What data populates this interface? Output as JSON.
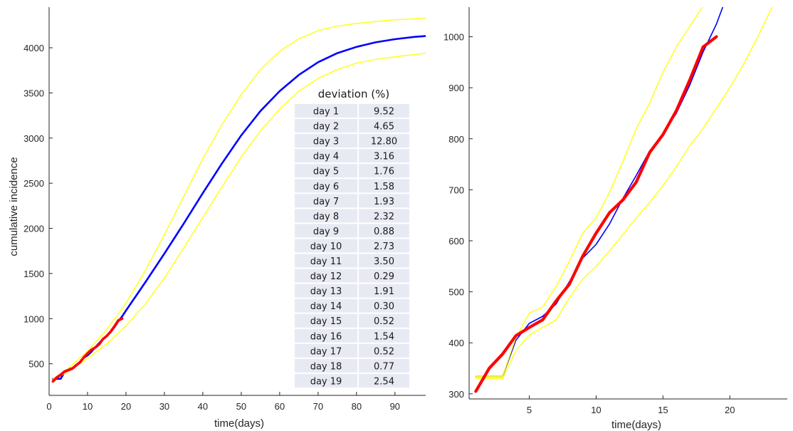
{
  "chart_data": [
    {
      "type": "line",
      "xlabel": "time(days)",
      "ylabel": "cumulative incidence",
      "xlim": [
        0,
        98
      ],
      "ylim": [
        150,
        4450
      ],
      "xticks": [
        0,
        10,
        20,
        30,
        40,
        50,
        60,
        70,
        80,
        90
      ],
      "yticks": [
        500,
        1000,
        1500,
        2000,
        2500,
        3000,
        3500,
        4000
      ],
      "series": [
        {
          "color": "#0000ff",
          "role": "model",
          "x": [
            1,
            2,
            3,
            4,
            5,
            6,
            7,
            8,
            9,
            10,
            11,
            12,
            13,
            14,
            15,
            16,
            17,
            18,
            19,
            20,
            25,
            30,
            35,
            40,
            45,
            50,
            55,
            60,
            65,
            70,
            75,
            80,
            85,
            90,
            95,
            98
          ],
          "y": [
            334,
            334,
            334,
            405,
            438,
            452,
            476,
            520,
            566,
            593,
            633,
            683,
            728,
            776,
            810,
            850,
            905,
            970,
            1025,
            1090,
            1400,
            1720,
            2050,
            2390,
            2720,
            3030,
            3300,
            3520,
            3700,
            3840,
            3940,
            4010,
            4060,
            4095,
            4120,
            4130
          ]
        },
        {
          "color": "#ffff00",
          "role": "upper bound",
          "x": [
            1,
            5,
            10,
            15,
            20,
            25,
            30,
            35,
            40,
            45,
            50,
            55,
            60,
            65,
            70,
            75,
            80,
            85,
            90,
            95,
            98
          ],
          "y": [
            334,
            450,
            640,
            880,
            1170,
            1530,
            1930,
            2350,
            2770,
            3150,
            3480,
            3760,
            3960,
            4100,
            4190,
            4240,
            4270,
            4290,
            4310,
            4320,
            4330
          ]
        },
        {
          "color": "#ffff00",
          "role": "lower bound",
          "x": [
            1,
            5,
            10,
            15,
            20,
            25,
            30,
            35,
            40,
            45,
            50,
            55,
            60,
            65,
            70,
            75,
            80,
            85,
            90,
            95,
            98
          ],
          "y": [
            320,
            415,
            560,
            720,
            920,
            1160,
            1450,
            1780,
            2120,
            2460,
            2790,
            3080,
            3320,
            3520,
            3660,
            3760,
            3830,
            3870,
            3900,
            3925,
            3940
          ]
        },
        {
          "color": "#ff0000",
          "role": "observed",
          "x": [
            1,
            2,
            3,
            4,
            5,
            6,
            7,
            8,
            9,
            10,
            11,
            12,
            13,
            14,
            15,
            16,
            17,
            18,
            19
          ],
          "y": [
            305,
            350,
            378,
            414,
            430,
            445,
            482,
            515,
            570,
            615,
            655,
            680,
            715,
            773,
            808,
            855,
            915,
            980,
            1000
          ]
        }
      ],
      "table": {
        "title": "deviation (%)",
        "rows": [
          [
            "day 1",
            "9.52"
          ],
          [
            "day 2",
            "4.65"
          ],
          [
            "day 3",
            "12.80"
          ],
          [
            "day 4",
            "3.16"
          ],
          [
            "day 5",
            "1.76"
          ],
          [
            "day 6",
            "1.58"
          ],
          [
            "day 7",
            "1.93"
          ],
          [
            "day 8",
            "2.32"
          ],
          [
            "day 9",
            "0.88"
          ],
          [
            "day 10",
            "2.73"
          ],
          [
            "day 11",
            "3.50"
          ],
          [
            "day 12",
            "0.29"
          ],
          [
            "day 13",
            "1.91"
          ],
          [
            "day 14",
            "0.30"
          ],
          [
            "day 15",
            "0.52"
          ],
          [
            "day 16",
            "1.54"
          ],
          [
            "day 17",
            "0.52"
          ],
          [
            "day 18",
            "0.77"
          ],
          [
            "day 19",
            "2.54"
          ]
        ]
      }
    },
    {
      "type": "line",
      "xlabel": "time(days)",
      "ylabel": "",
      "xlim": [
        0.5,
        24.3
      ],
      "ylim": [
        290,
        1058
      ],
      "xticks": [
        5,
        10,
        15,
        20
      ],
      "yticks": [
        300,
        400,
        500,
        600,
        700,
        800,
        900,
        1000
      ],
      "series": [
        {
          "color": "#0000ff",
          "role": "model",
          "x": [
            1,
            2,
            3,
            4,
            5,
            6,
            7,
            8,
            9,
            10,
            11,
            12,
            13,
            14,
            15,
            16,
            17,
            18,
            19,
            19.5
          ],
          "y": [
            334,
            334,
            334,
            405,
            438,
            452,
            476,
            520,
            566,
            593,
            633,
            683,
            728,
            776,
            810,
            850,
            905,
            970,
            1025,
            1060
          ]
        },
        {
          "color": "#ffff00",
          "role": "upper bound",
          "x": [
            1,
            2,
            3,
            4,
            5,
            6,
            7,
            8,
            9,
            10,
            11,
            12,
            13,
            14,
            15,
            16,
            17,
            18,
            19
          ],
          "y": [
            334,
            334,
            334,
            410,
            458,
            470,
            510,
            560,
            615,
            645,
            695,
            755,
            820,
            870,
            930,
            980,
            1020,
            1060,
            1060
          ]
        },
        {
          "color": "#ffff00",
          "role": "lower bound",
          "x": [
            1,
            2,
            3,
            4,
            5,
            6,
            7,
            8,
            9,
            10,
            11,
            12,
            13,
            14,
            15,
            16,
            17,
            18,
            19,
            20,
            21,
            22,
            23.2
          ],
          "y": [
            330,
            330,
            330,
            385,
            415,
            430,
            445,
            488,
            525,
            550,
            580,
            612,
            645,
            675,
            708,
            745,
            786,
            820,
            860,
            900,
            945,
            995,
            1060
          ]
        },
        {
          "color": "#ff0000",
          "role": "observed",
          "x": [
            1,
            2,
            3,
            4,
            5,
            6,
            7,
            8,
            9,
            10,
            11,
            12,
            13,
            14,
            15,
            16,
            17,
            18,
            19
          ],
          "y": [
            305,
            350,
            378,
            414,
            430,
            445,
            482,
            515,
            570,
            615,
            655,
            680,
            715,
            773,
            808,
            855,
            915,
            980,
            1000
          ]
        }
      ]
    }
  ]
}
